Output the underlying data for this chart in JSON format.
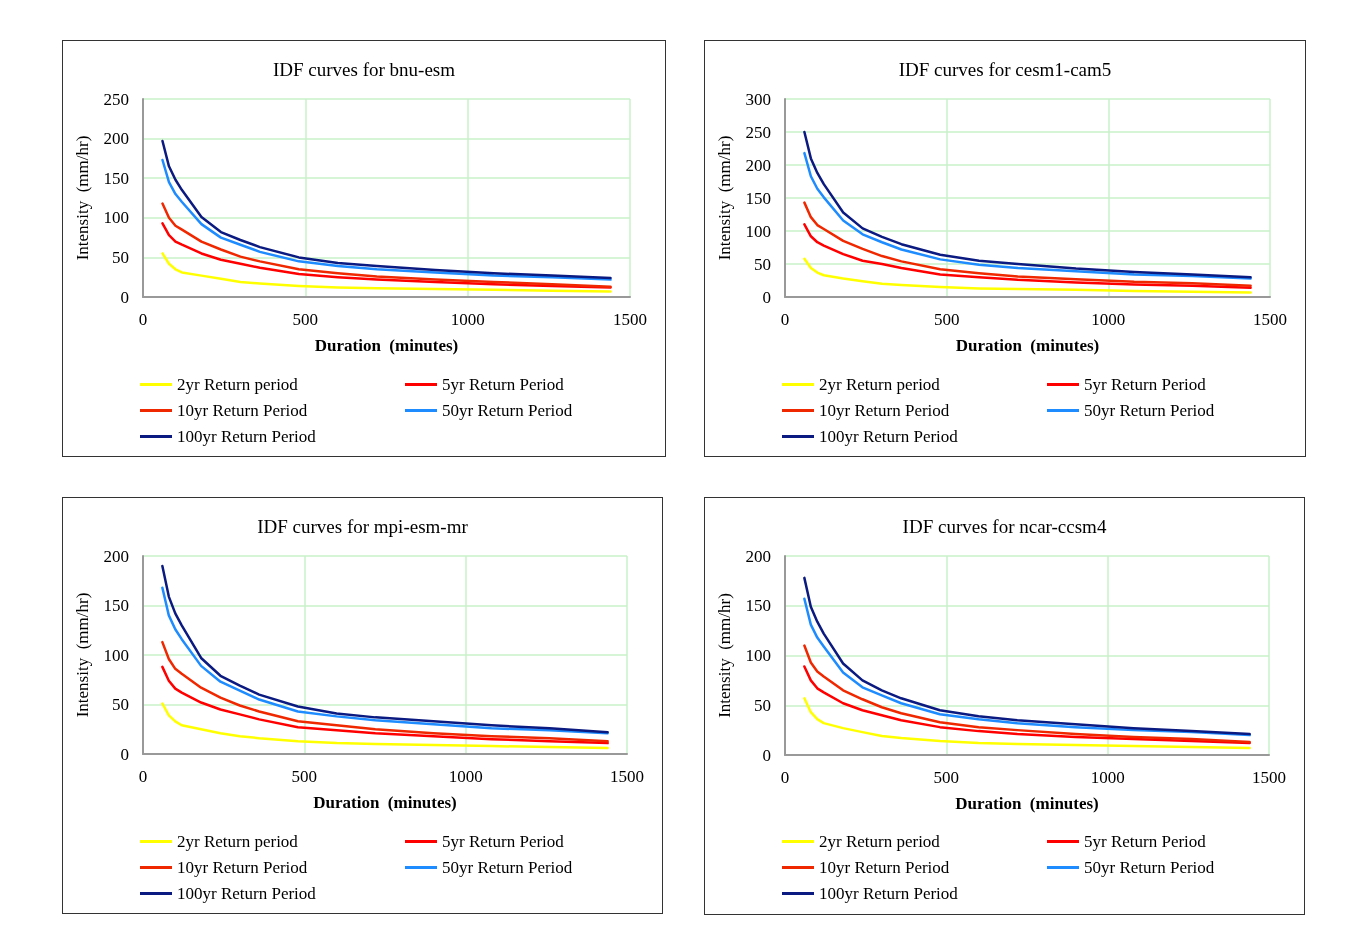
{
  "chart_data": [
    {
      "type": "line",
      "title": "IDF curves for bnu-esm",
      "xlabel": "Duration  (minutes)",
      "ylabel": "Intensity  (mm/hr)",
      "xlim": [
        0,
        1500
      ],
      "xticks": [
        0,
        500,
        1000,
        1500
      ],
      "ylim": [
        0,
        250
      ],
      "yticks": [
        0,
        50,
        100,
        150,
        200,
        250
      ],
      "grid": true,
      "legend": "bottom",
      "marker": "none",
      "line_style": "solid",
      "x": [
        60,
        80,
        100,
        120,
        180,
        240,
        300,
        360,
        480,
        600,
        720,
        900,
        1080,
        1260,
        1440
      ],
      "series": [
        {
          "name": "2yr Return period",
          "color": "#ffff00",
          "values": [
            55,
            42,
            35,
            31,
            27,
            23,
            19,
            17,
            14,
            12,
            11,
            10,
            9,
            8,
            7
          ]
        },
        {
          "name": "5yr Return Period",
          "color": "#ff0000",
          "values": [
            93,
            78,
            70,
            66,
            55,
            47,
            42,
            37,
            29,
            25,
            22,
            19,
            16,
            14,
            12
          ]
        },
        {
          "name": "10yr Return Period",
          "color": "#f02800",
          "values": [
            118,
            100,
            90,
            85,
            70,
            60,
            51,
            45,
            35,
            30,
            26,
            22,
            19,
            16,
            13
          ]
        },
        {
          "name": "50yr Return Period",
          "color": "#1e8cff",
          "values": [
            173,
            145,
            130,
            120,
            92,
            75,
            66,
            57,
            45,
            39,
            35,
            31,
            27,
            25,
            22
          ]
        },
        {
          "name": "100yr Return Period",
          "color": "#0a1a80",
          "values": [
            197,
            165,
            148,
            135,
            101,
            82,
            72,
            63,
            50,
            43,
            39,
            34,
            30,
            27,
            24
          ]
        }
      ]
    },
    {
      "type": "line",
      "title": "IDF curves for cesm1-cam5",
      "xlabel": "Duration  (minutes)",
      "ylabel": "Intensity  (mm/hr)",
      "xlim": [
        0,
        1500
      ],
      "xticks": [
        0,
        500,
        1000,
        1500
      ],
      "ylim": [
        0,
        300
      ],
      "yticks": [
        0,
        50,
        100,
        150,
        200,
        250,
        300
      ],
      "grid": true,
      "legend": "bottom",
      "marker": "none",
      "line_style": "solid",
      "x": [
        60,
        80,
        100,
        120,
        180,
        240,
        300,
        360,
        480,
        600,
        720,
        900,
        1080,
        1260,
        1440
      ],
      "series": [
        {
          "name": "2yr Return period",
          "color": "#ffff00",
          "values": [
            58,
            44,
            37,
            33,
            28,
            24,
            20,
            18,
            15,
            13,
            12,
            11,
            9,
            8,
            7
          ]
        },
        {
          "name": "5yr Return Period",
          "color": "#ff0000",
          "values": [
            110,
            92,
            83,
            78,
            65,
            55,
            50,
            44,
            34,
            30,
            26,
            22,
            19,
            17,
            14
          ]
        },
        {
          "name": "10yr Return Period",
          "color": "#f02800",
          "values": [
            143,
            121,
            109,
            103,
            85,
            73,
            62,
            54,
            42,
            36,
            31,
            27,
            23,
            21,
            17
          ]
        },
        {
          "name": "50yr Return Period",
          "color": "#1e8cff",
          "values": [
            218,
            183,
            164,
            151,
            116,
            95,
            83,
            72,
            57,
            49,
            44,
            39,
            34,
            32,
            28
          ]
        },
        {
          "name": "100yr Return Period",
          "color": "#0a1a80",
          "values": [
            250,
            210,
            188,
            171,
            128,
            104,
            91,
            80,
            64,
            55,
            50,
            43,
            38,
            34,
            30
          ]
        }
      ]
    },
    {
      "type": "line",
      "title": "IDF curves for mpi-esm-mr",
      "xlabel": "Duration  (minutes)",
      "ylabel": "Intensity  (mm/hr)",
      "xlim": [
        0,
        1500
      ],
      "xticks": [
        0,
        500,
        1000,
        1500
      ],
      "ylim": [
        0,
        200
      ],
      "yticks": [
        0,
        50,
        100,
        150,
        200
      ],
      "grid": true,
      "legend": "bottom",
      "marker": "none",
      "line_style": "solid",
      "x": [
        60,
        80,
        100,
        120,
        180,
        240,
        300,
        360,
        480,
        600,
        720,
        900,
        1080,
        1260,
        1440
      ],
      "series": [
        {
          "name": "2yr Return period",
          "color": "#ffff00",
          "values": [
            51,
            39,
            33,
            29,
            25,
            21,
            18,
            16,
            13,
            11,
            10,
            9,
            8,
            7,
            6
          ]
        },
        {
          "name": "5yr Return Period",
          "color": "#ff0000",
          "values": [
            88,
            74,
            66,
            62,
            52,
            45,
            40,
            35,
            27,
            24,
            21,
            18,
            15,
            13,
            11
          ]
        },
        {
          "name": "10yr Return Period",
          "color": "#f02800",
          "values": [
            113,
            96,
            86,
            81,
            67,
            57,
            49,
            43,
            33,
            29,
            25,
            21,
            18,
            16,
            13
          ]
        },
        {
          "name": "50yr Return Period",
          "color": "#1e8cff",
          "values": [
            168,
            140,
            126,
            116,
            89,
            73,
            64,
            55,
            43,
            38,
            34,
            30,
            26,
            24,
            21
          ]
        },
        {
          "name": "100yr Return Period",
          "color": "#0a1a80",
          "values": [
            190,
            159,
            142,
            130,
            97,
            79,
            69,
            60,
            48,
            41,
            37,
            33,
            29,
            26,
            22
          ]
        }
      ]
    },
    {
      "type": "line",
      "title": "IDF curves for ncar-ccsm4",
      "xlabel": "Duration  (minutes)",
      "ylabel": "Intensity  (mm/hr)",
      "xlim": [
        0,
        1500
      ],
      "xticks": [
        0,
        500,
        1000,
        1500
      ],
      "ylim": [
        0,
        200
      ],
      "yticks": [
        0,
        50,
        100,
        150,
        200
      ],
      "grid": true,
      "legend": "bottom",
      "marker": "none",
      "line_style": "solid",
      "x": [
        60,
        80,
        100,
        120,
        180,
        240,
        300,
        360,
        480,
        600,
        720,
        900,
        1080,
        1260,
        1440
      ],
      "series": [
        {
          "name": "2yr Return period",
          "color": "#ffff00",
          "values": [
            57,
            43,
            36,
            32,
            27,
            23,
            19,
            17,
            14,
            12,
            11,
            10,
            9,
            8,
            7
          ]
        },
        {
          "name": "5yr Return Period",
          "color": "#ff0000",
          "values": [
            89,
            75,
            67,
            63,
            52,
            45,
            40,
            35,
            28,
            24,
            21,
            18,
            16,
            14,
            12
          ]
        },
        {
          "name": "10yr Return Period",
          "color": "#f02800",
          "values": [
            110,
            93,
            84,
            79,
            65,
            56,
            48,
            42,
            33,
            28,
            25,
            21,
            18,
            16,
            13
          ]
        },
        {
          "name": "50yr Return Period",
          "color": "#1e8cff",
          "values": [
            157,
            131,
            118,
            109,
            83,
            68,
            60,
            52,
            41,
            36,
            32,
            28,
            25,
            23,
            20
          ]
        },
        {
          "name": "100yr Return Period",
          "color": "#0a1a80",
          "values": [
            178,
            149,
            134,
            122,
            92,
            75,
            65,
            57,
            45,
            39,
            35,
            31,
            27,
            24,
            21
          ]
        }
      ]
    }
  ]
}
